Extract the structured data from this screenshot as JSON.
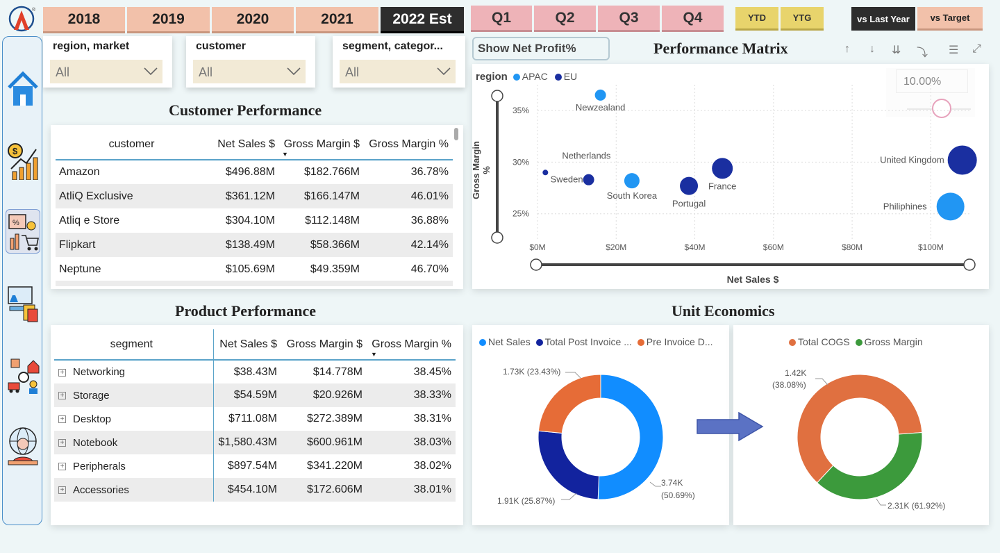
{
  "years": [
    {
      "label": "2018",
      "selected": false
    },
    {
      "label": "2019",
      "selected": false
    },
    {
      "label": "2020",
      "selected": false
    },
    {
      "label": "2021",
      "selected": false
    },
    {
      "label": "2022 Est",
      "selected": true
    }
  ],
  "quarters": [
    "Q1",
    "Q2",
    "Q3",
    "Q4"
  ],
  "ytd": {
    "ytd": "YTD",
    "ytg": "YTG"
  },
  "compare": {
    "vs_last_year": "vs Last Year",
    "vs_target": "vs Target"
  },
  "slicers": [
    {
      "title": "region, market",
      "value": "All"
    },
    {
      "title": "customer",
      "value": "All"
    },
    {
      "title": "segment, categor...",
      "value": "All"
    }
  ],
  "nav_icons": [
    "home-icon",
    "finance-icon",
    "sales-icon",
    "marketing-icon",
    "supply-chain-icon",
    "global-support-icon"
  ],
  "customer_performance": {
    "title": "Customer Performance",
    "headers": [
      "customer",
      "Net Sales $",
      "Gross Margin $",
      "Gross Margin %"
    ],
    "rows": [
      [
        "Amazon",
        "$496.88M",
        "$182.766M",
        "36.78%"
      ],
      [
        "AtliQ Exclusive",
        "$361.12M",
        "$166.147M",
        "46.01%"
      ],
      [
        "Atliq e Store",
        "$304.10M",
        "$112.148M",
        "36.88%"
      ],
      [
        "Flipkart",
        "$138.49M",
        "$58.366M",
        "42.14%"
      ],
      [
        "Neptune",
        "$105.69M",
        "$49.359M",
        "46.70%"
      ]
    ]
  },
  "product_performance": {
    "title": "Product Performance",
    "headers": [
      "segment",
      "Net Sales $",
      "Gross Margin $",
      "Gross Margin %"
    ],
    "rows": [
      [
        "Networking",
        "$38.43M",
        "$14.778M",
        "38.45%"
      ],
      [
        "Storage",
        "$54.59M",
        "$20.926M",
        "38.33%"
      ],
      [
        "Desktop",
        "$711.08M",
        "$272.389M",
        "38.31%"
      ],
      [
        "Notebook",
        "$1,580.43M",
        "$600.961M",
        "38.03%"
      ],
      [
        "Peripherals",
        "$897.54M",
        "$341.220M",
        "38.02%"
      ],
      [
        "Accessories",
        "$454.10M",
        "$172.606M",
        "38.01%"
      ]
    ]
  },
  "performance_matrix": {
    "title": "Performance Matrix",
    "toggle_label": "Show Net Profit%",
    "threshold_value": "10.00%",
    "colors": {
      "APAC": "#2196f3",
      "EU": "#1a2fa0"
    }
  },
  "chart_data": [
    {
      "type": "scatter",
      "title": "Performance Matrix",
      "xlabel": "Net Sales $",
      "ylabel": "Gross Margin %",
      "legend_title": "region",
      "x_ticks": [
        "$0M",
        "$20M",
        "$40M",
        "$60M",
        "$80M",
        "$100M"
      ],
      "y_ticks": [
        "35%",
        "30%",
        "25%"
      ],
      "xlim": [
        0,
        110
      ],
      "ylim": [
        23.5,
        37.5
      ],
      "series": [
        {
          "name": "APAC",
          "points": [
            {
              "label": "Newzealand",
              "x": 16,
              "y": 36.5,
              "size": 8
            },
            {
              "label": "South Korea",
              "x": 24,
              "y": 28.2,
              "size": 11
            },
            {
              "label": "Philiphines",
              "x": 105,
              "y": 25.7,
              "size": 20
            }
          ]
        },
        {
          "name": "EU",
          "points": [
            {
              "label": "Netherlands",
              "x": 2,
              "y": 29.0,
              "size": 4
            },
            {
              "label": "Sweden",
              "x": 13,
              "y": 28.3,
              "size": 8
            },
            {
              "label": "Portugal",
              "x": 38.5,
              "y": 27.7,
              "size": 13
            },
            {
              "label": "France",
              "x": 47,
              "y": 29.4,
              "size": 15
            },
            {
              "label": "United Kingdom",
              "x": 108,
              "y": 30.2,
              "size": 21
            }
          ]
        }
      ]
    },
    {
      "type": "pie",
      "title": "Unit Economics",
      "series": [
        {
          "name": "Net Sales",
          "value": 3.74,
          "label": "3.74K",
          "pct": "(50.69%)",
          "color": "#118dff"
        },
        {
          "name": "Total Post Invoice ...",
          "value": 1.91,
          "label": "1.91K (25.87%)",
          "color": "#12239e"
        },
        {
          "name": "Pre Invoice D...",
          "value": 1.73,
          "label": "1.73K (23.43%)",
          "color": "#e66c37"
        }
      ]
    },
    {
      "type": "pie",
      "series": [
        {
          "name": "Total COGS",
          "value": 2.31,
          "label": "2.31K (61.92%)",
          "color": "#e07040"
        },
        {
          "name": "Gross Margin",
          "value": 1.42,
          "label": "1.42K",
          "pct": "(38.08%)",
          "color": "#3c9a3c"
        }
      ]
    }
  ],
  "unit_economics": {
    "title": "Unit Economics"
  }
}
